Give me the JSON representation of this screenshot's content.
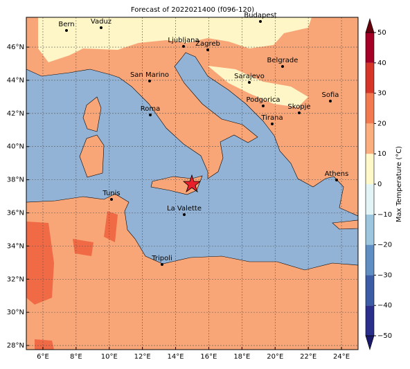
{
  "title": "Forecast of 2022021400 (f096-120)",
  "map": {
    "xlim": [
      5,
      25
    ],
    "ylim": [
      27.75,
      47.8
    ],
    "xticks": [
      {
        "value": 6,
        "label": "6°E"
      },
      {
        "value": 8,
        "label": "8°E"
      },
      {
        "value": 10,
        "label": "10°E"
      },
      {
        "value": 12,
        "label": "12°E"
      },
      {
        "value": 14,
        "label": "14°E"
      },
      {
        "value": 16,
        "label": "16°E"
      },
      {
        "value": 18,
        "label": "18°E"
      },
      {
        "value": 20,
        "label": "20°E"
      },
      {
        "value": 22,
        "label": "22°E"
      },
      {
        "value": 24,
        "label": "24°E"
      }
    ],
    "yticks": [
      {
        "value": 28,
        "label": "28°N"
      },
      {
        "value": 30,
        "label": "30°N"
      },
      {
        "value": 32,
        "label": "32°N"
      },
      {
        "value": 34,
        "label": "34°N"
      },
      {
        "value": 36,
        "label": "36°N"
      },
      {
        "value": 38,
        "label": "38°N"
      },
      {
        "value": 40,
        "label": "40°N"
      },
      {
        "value": 42,
        "label": "42°N"
      },
      {
        "value": 44,
        "label": "44°N"
      },
      {
        "value": 46,
        "label": "46°N"
      }
    ],
    "grid": true,
    "cities": [
      "Bern",
      "Vaduz",
      "Budapest",
      "Ljubljana",
      "Zagreb",
      "Belgrade",
      "San Marino",
      "Sarajevo",
      "Sofia",
      "Podgorica",
      "Skopje",
      "Roma",
      "Tirana",
      "Athens",
      "Tunis",
      "La Valette",
      "Tripoli"
    ]
  },
  "colorbar": {
    "label": "Max Temperature (°C)",
    "lim": [
      -50,
      50
    ],
    "ticks": [
      {
        "value": -50,
        "label": "−50"
      },
      {
        "value": -40,
        "label": "−40"
      },
      {
        "value": -30,
        "label": "−30"
      },
      {
        "value": -20,
        "label": "−20"
      },
      {
        "value": -10,
        "label": "−10"
      },
      0,
      10,
      20,
      30,
      40,
      50
    ],
    "colors": [
      "#2a2f8c",
      "#3b5da6",
      "#5f8fc2",
      "#9cc5de",
      "#e3f4f7",
      "#fff8c8",
      "#fcae7e",
      "#f37a50",
      "#d63628",
      "#a50026"
    ],
    "under": "#1b1a6a",
    "over": "#67000d"
  }
}
